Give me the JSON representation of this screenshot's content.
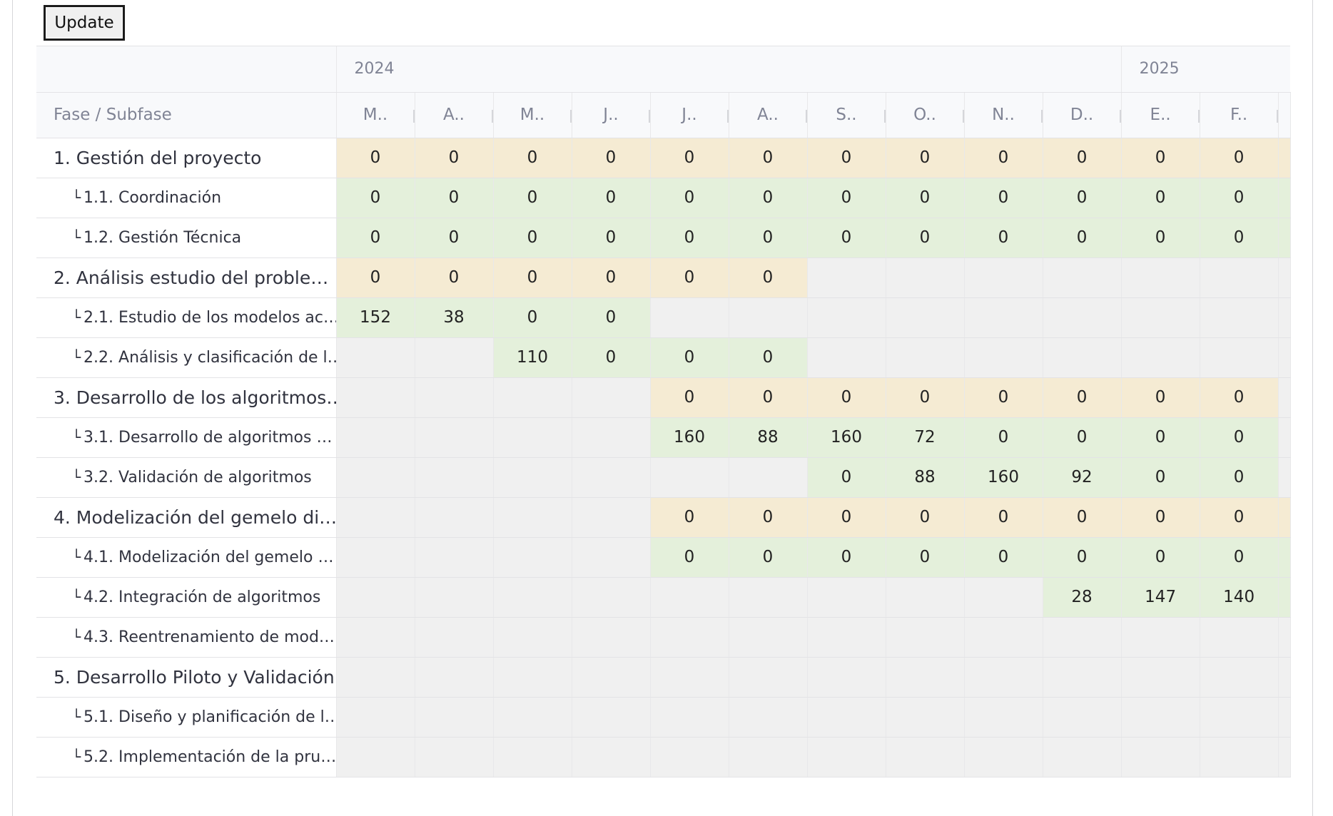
{
  "toolbar": {
    "update_label": "Update"
  },
  "years": [
    {
      "label": "2024",
      "span": 10
    },
    {
      "label": "2025",
      "span": 2
    }
  ],
  "name_header": "Fase / Subfase",
  "months": [
    "M..",
    "A..",
    "M..",
    "J..",
    "J..",
    "A..",
    "S..",
    "O..",
    "N..",
    "D..",
    "E..",
    "F.."
  ],
  "rows": [
    {
      "name": "1. Gestión del proyecto",
      "kind": "phase",
      "cells": [
        [
          "p",
          "0"
        ],
        [
          "p",
          "0"
        ],
        [
          "p",
          "0"
        ],
        [
          "p",
          "0"
        ],
        [
          "p",
          "0"
        ],
        [
          "p",
          "0"
        ],
        [
          "p",
          "0"
        ],
        [
          "p",
          "0"
        ],
        [
          "p",
          "0"
        ],
        [
          "p",
          "0"
        ],
        [
          "p",
          "0"
        ],
        [
          "p",
          "0"
        ]
      ],
      "tail": "p"
    },
    {
      "name": "1.1. Coordinación",
      "kind": "sub",
      "cells": [
        [
          "s",
          "0"
        ],
        [
          "s",
          "0"
        ],
        [
          "s",
          "0"
        ],
        [
          "s",
          "0"
        ],
        [
          "s",
          "0"
        ],
        [
          "s",
          "0"
        ],
        [
          "s",
          "0"
        ],
        [
          "s",
          "0"
        ],
        [
          "s",
          "0"
        ],
        [
          "s",
          "0"
        ],
        [
          "s",
          "0"
        ],
        [
          "s",
          "0"
        ]
      ],
      "tail": "s"
    },
    {
      "name": "1.2. Gestión Técnica",
      "kind": "sub",
      "cells": [
        [
          "s",
          "0"
        ],
        [
          "s",
          "0"
        ],
        [
          "s",
          "0"
        ],
        [
          "s",
          "0"
        ],
        [
          "s",
          "0"
        ],
        [
          "s",
          "0"
        ],
        [
          "s",
          "0"
        ],
        [
          "s",
          "0"
        ],
        [
          "s",
          "0"
        ],
        [
          "s",
          "0"
        ],
        [
          "s",
          "0"
        ],
        [
          "s",
          "0"
        ]
      ],
      "tail": "s"
    },
    {
      "name": "2. Análisis estudio del proble…",
      "kind": "phase",
      "cells": [
        [
          "p",
          "0"
        ],
        [
          "p",
          "0"
        ],
        [
          "p",
          "0"
        ],
        [
          "p",
          "0"
        ],
        [
          "p",
          "0"
        ],
        [
          "p",
          "0"
        ],
        [
          "e",
          ""
        ],
        [
          "e",
          ""
        ],
        [
          "e",
          ""
        ],
        [
          "e",
          ""
        ],
        [
          "e",
          ""
        ],
        [
          "e",
          ""
        ]
      ],
      "tail": "e"
    },
    {
      "name": "2.1. Estudio de los modelos ac…",
      "kind": "sub",
      "cells": [
        [
          "s",
          "152"
        ],
        [
          "s",
          "38"
        ],
        [
          "s",
          "0"
        ],
        [
          "s",
          "0"
        ],
        [
          "e",
          ""
        ],
        [
          "e",
          ""
        ],
        [
          "e",
          ""
        ],
        [
          "e",
          ""
        ],
        [
          "e",
          ""
        ],
        [
          "e",
          ""
        ],
        [
          "e",
          ""
        ],
        [
          "e",
          ""
        ]
      ],
      "tail": "e"
    },
    {
      "name": "2.2. Análisis y clasificación de l…",
      "kind": "sub",
      "cells": [
        [
          "e",
          ""
        ],
        [
          "e",
          ""
        ],
        [
          "s",
          "110"
        ],
        [
          "s",
          "0"
        ],
        [
          "s",
          "0"
        ],
        [
          "s",
          "0"
        ],
        [
          "e",
          ""
        ],
        [
          "e",
          ""
        ],
        [
          "e",
          ""
        ],
        [
          "e",
          ""
        ],
        [
          "e",
          ""
        ],
        [
          "e",
          ""
        ]
      ],
      "tail": "e"
    },
    {
      "name": "3. Desarrollo de los algoritmos…",
      "kind": "phase",
      "cells": [
        [
          "e",
          ""
        ],
        [
          "e",
          ""
        ],
        [
          "e",
          ""
        ],
        [
          "e",
          ""
        ],
        [
          "p",
          "0"
        ],
        [
          "p",
          "0"
        ],
        [
          "p",
          "0"
        ],
        [
          "p",
          "0"
        ],
        [
          "p",
          "0"
        ],
        [
          "p",
          "0"
        ],
        [
          "p",
          "0"
        ],
        [
          "p",
          "0"
        ]
      ],
      "tail": "e"
    },
    {
      "name": "3.1. Desarrollo de algoritmos …",
      "kind": "sub",
      "cells": [
        [
          "e",
          ""
        ],
        [
          "e",
          ""
        ],
        [
          "e",
          ""
        ],
        [
          "e",
          ""
        ],
        [
          "s",
          "160"
        ],
        [
          "s",
          "88"
        ],
        [
          "s",
          "160"
        ],
        [
          "s",
          "72"
        ],
        [
          "s",
          "0"
        ],
        [
          "s",
          "0"
        ],
        [
          "s",
          "0"
        ],
        [
          "s",
          "0"
        ]
      ],
      "tail": "e"
    },
    {
      "name": "3.2. Validación de algoritmos",
      "kind": "sub",
      "cells": [
        [
          "e",
          ""
        ],
        [
          "e",
          ""
        ],
        [
          "e",
          ""
        ],
        [
          "e",
          ""
        ],
        [
          "e",
          ""
        ],
        [
          "e",
          ""
        ],
        [
          "s",
          "0"
        ],
        [
          "s",
          "88"
        ],
        [
          "s",
          "160"
        ],
        [
          "s",
          "92"
        ],
        [
          "s",
          "0"
        ],
        [
          "s",
          "0"
        ]
      ],
      "tail": "e"
    },
    {
      "name": "4. Modelización del gemelo di…",
      "kind": "phase",
      "cells": [
        [
          "e",
          ""
        ],
        [
          "e",
          ""
        ],
        [
          "e",
          ""
        ],
        [
          "e",
          ""
        ],
        [
          "p",
          "0"
        ],
        [
          "p",
          "0"
        ],
        [
          "p",
          "0"
        ],
        [
          "p",
          "0"
        ],
        [
          "p",
          "0"
        ],
        [
          "p",
          "0"
        ],
        [
          "p",
          "0"
        ],
        [
          "p",
          "0"
        ]
      ],
      "tail": "p"
    },
    {
      "name": "4.1. Modelización del gemelo …",
      "kind": "sub",
      "cells": [
        [
          "e",
          ""
        ],
        [
          "e",
          ""
        ],
        [
          "e",
          ""
        ],
        [
          "e",
          ""
        ],
        [
          "s",
          "0"
        ],
        [
          "s",
          "0"
        ],
        [
          "s",
          "0"
        ],
        [
          "s",
          "0"
        ],
        [
          "s",
          "0"
        ],
        [
          "s",
          "0"
        ],
        [
          "s",
          "0"
        ],
        [
          "s",
          "0"
        ]
      ],
      "tail": "s"
    },
    {
      "name": "4.2. Integración de algoritmos",
      "kind": "sub",
      "cells": [
        [
          "e",
          ""
        ],
        [
          "e",
          ""
        ],
        [
          "e",
          ""
        ],
        [
          "e",
          ""
        ],
        [
          "e",
          ""
        ],
        [
          "e",
          ""
        ],
        [
          "e",
          ""
        ],
        [
          "e",
          ""
        ],
        [
          "e",
          ""
        ],
        [
          "s",
          "28"
        ],
        [
          "s",
          "147"
        ],
        [
          "s",
          "140"
        ]
      ],
      "tail": "s"
    },
    {
      "name": "4.3. Reentrenamiento de mod…",
      "kind": "sub",
      "cells": [
        [
          "e",
          ""
        ],
        [
          "e",
          ""
        ],
        [
          "e",
          ""
        ],
        [
          "e",
          ""
        ],
        [
          "e",
          ""
        ],
        [
          "e",
          ""
        ],
        [
          "e",
          ""
        ],
        [
          "e",
          ""
        ],
        [
          "e",
          ""
        ],
        [
          "e",
          ""
        ],
        [
          "e",
          ""
        ],
        [
          "e",
          ""
        ]
      ],
      "tail": "e"
    },
    {
      "name": "5. Desarrollo Piloto y Validación",
      "kind": "phase",
      "cells": [
        [
          "e",
          ""
        ],
        [
          "e",
          ""
        ],
        [
          "e",
          ""
        ],
        [
          "e",
          ""
        ],
        [
          "e",
          ""
        ],
        [
          "e",
          ""
        ],
        [
          "e",
          ""
        ],
        [
          "e",
          ""
        ],
        [
          "e",
          ""
        ],
        [
          "e",
          ""
        ],
        [
          "e",
          ""
        ],
        [
          "e",
          ""
        ]
      ],
      "tail": "e"
    },
    {
      "name": "5.1. Diseño y planificación de l…",
      "kind": "sub",
      "cells": [
        [
          "e",
          ""
        ],
        [
          "e",
          ""
        ],
        [
          "e",
          ""
        ],
        [
          "e",
          ""
        ],
        [
          "e",
          ""
        ],
        [
          "e",
          ""
        ],
        [
          "e",
          ""
        ],
        [
          "e",
          ""
        ],
        [
          "e",
          ""
        ],
        [
          "e",
          ""
        ],
        [
          "e",
          ""
        ],
        [
          "e",
          ""
        ]
      ],
      "tail": "e"
    },
    {
      "name": "5.2. Implementación de la pru…",
      "kind": "sub",
      "cells": [
        [
          "e",
          ""
        ],
        [
          "e",
          ""
        ],
        [
          "e",
          ""
        ],
        [
          "e",
          ""
        ],
        [
          "e",
          ""
        ],
        [
          "e",
          ""
        ],
        [
          "e",
          ""
        ],
        [
          "e",
          ""
        ],
        [
          "e",
          ""
        ],
        [
          "e",
          ""
        ],
        [
          "e",
          ""
        ],
        [
          "e",
          ""
        ]
      ],
      "tail": "e"
    }
  ],
  "colors": {
    "phase_cell": "#f5ebd3",
    "subphase_cell": "#e4f0db",
    "empty_cell": "#f0f0f0",
    "header_bg": "#f8f9fb"
  }
}
